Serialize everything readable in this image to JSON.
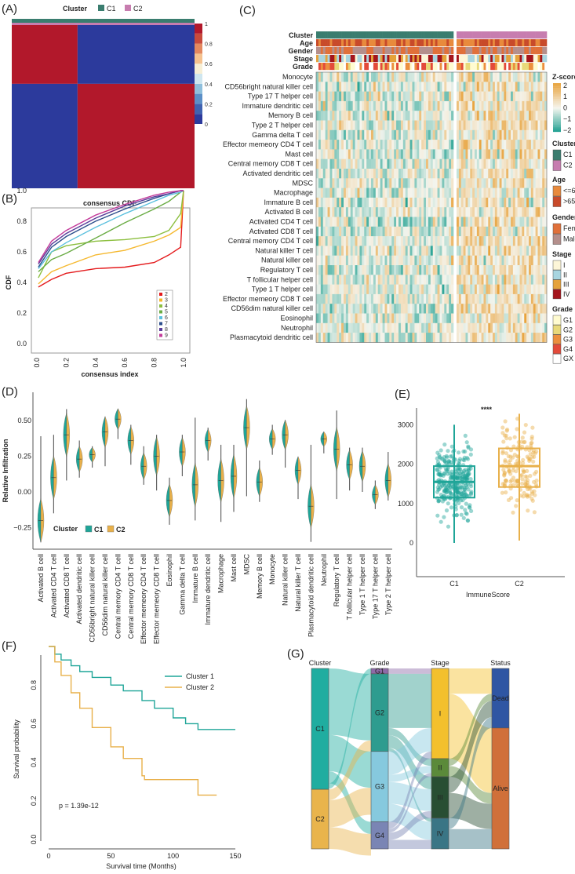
{
  "panel_labels": [
    "(A)",
    "(B)",
    "(C)",
    "(D)",
    "(E)",
    "(F)",
    "(G)"
  ],
  "chart_data": [
    {
      "panel": "A",
      "type": "heatmap",
      "legend": {
        "title": "Cluster",
        "items": [
          {
            "label": "C1",
            "color": "#3a7d6f"
          },
          {
            "label": "C2",
            "color": "#c77daf"
          }
        ]
      },
      "colorbar_ticks": [
        "0",
        "0.2",
        "0.4",
        "0.6",
        "0.8",
        "1"
      ],
      "blocks": [
        {
          "cluster": "C1",
          "value": 1
        },
        {
          "cluster": "C2",
          "value": 1
        }
      ],
      "off_diagonal_value": 0,
      "c1_fraction": 0.36,
      "colors": {
        "high": "#b2182b",
        "low": "#2c3a9c"
      }
    },
    {
      "panel": "B",
      "type": "line",
      "title": "consensus CDF",
      "xlabel": "consensus index",
      "ylabel": "CDF",
      "xlim": [
        0,
        1
      ],
      "ylim": [
        0,
        1
      ],
      "xticks": [
        "0.0",
        "0.2",
        "0.4",
        "0.6",
        "0.8",
        "1.0"
      ],
      "yticks": [
        "0.0",
        "0.2",
        "0.4",
        "0.6",
        "0.8",
        "1.0"
      ],
      "legend_position": "bottom-right",
      "x": [
        0.01,
        0.1,
        0.2,
        0.4,
        0.6,
        0.8,
        0.9,
        0.98,
        1.0
      ],
      "series": [
        {
          "name": "2",
          "color": "#e41a1c",
          "values": [
            0.37,
            0.42,
            0.46,
            0.49,
            0.5,
            0.53,
            0.58,
            0.63,
            1.0
          ]
        },
        {
          "name": "3",
          "color": "#f5b82e",
          "values": [
            0.39,
            0.47,
            0.51,
            0.58,
            0.61,
            0.67,
            0.71,
            0.76,
            1.0
          ]
        },
        {
          "name": "4",
          "color": "#8cbf3f",
          "values": [
            0.43,
            0.6,
            0.64,
            0.67,
            0.68,
            0.7,
            0.74,
            0.85,
            1.0
          ]
        },
        {
          "name": "5",
          "color": "#6aac44",
          "values": [
            0.47,
            0.55,
            0.59,
            0.69,
            0.79,
            0.88,
            0.93,
            0.99,
            1.0
          ]
        },
        {
          "name": "6",
          "color": "#5bc0de",
          "values": [
            0.49,
            0.6,
            0.66,
            0.76,
            0.85,
            0.93,
            0.97,
            0.99,
            1.0
          ]
        },
        {
          "name": "7",
          "color": "#2c4e8c",
          "values": [
            0.5,
            0.63,
            0.7,
            0.8,
            0.88,
            0.95,
            0.98,
            1.0,
            1.0
          ]
        },
        {
          "name": "8",
          "color": "#5a3d9a",
          "values": [
            0.52,
            0.65,
            0.72,
            0.82,
            0.9,
            0.96,
            0.98,
            1.0,
            1.0
          ]
        },
        {
          "name": "9",
          "color": "#c33b9a",
          "values": [
            0.53,
            0.67,
            0.74,
            0.84,
            0.91,
            0.97,
            0.99,
            1.0,
            1.0
          ]
        }
      ]
    },
    {
      "panel": "C",
      "type": "heatmap",
      "annotation_tracks": [
        "Cluster",
        "Age",
        "Gender",
        "Stage",
        "Grade"
      ],
      "rows": [
        "Monocyte",
        "CD56bright natural killer cell",
        "Type 17 T helper cell",
        "Immature dendritic cell",
        "Memory B cell",
        "Type 2 T helper cell",
        "Gamma delta T cell",
        "Effector memeory CD4 T cell",
        "Mast cell",
        "Central memory CD8 T cell",
        "Activated dendritic cell",
        "MDSC",
        "Macrophage",
        "Immature  B cell",
        "Activated B cell",
        "Activated CD4 T cell",
        "Activated CD8 T cell",
        "Central memory CD4 T cell",
        "Natural killer T cell",
        "Natural killer cell",
        "Regulatory T cell",
        "T follicular helper cell",
        "Type 1 T helper cell",
        "Effector memeory CD8 T cell",
        "CD56dim natural killer cell",
        "Eosinophil",
        "Neutrophil",
        "Plasmacytoid dendritic cell"
      ],
      "zscore": {
        "title": "Z-score",
        "ticks": [
          "2",
          "1",
          "0",
          "−1",
          "−2"
        ],
        "colors": {
          "low": "#1a9e8f",
          "mid": "#f5f5ee",
          "high": "#e8a33d"
        }
      },
      "legends": [
        {
          "title": "Cluster",
          "items": [
            {
              "label": "C1",
              "color": "#3a7d6f"
            },
            {
              "label": "C2",
              "color": "#c77daf"
            }
          ]
        },
        {
          "title": "Age",
          "items": [
            {
              "label": "<=65",
              "color": "#e88a3c"
            },
            {
              "label": ">65",
              "color": "#c84a2a"
            }
          ]
        },
        {
          "title": "Gender",
          "items": [
            {
              "label": "Female",
              "color": "#e0703a"
            },
            {
              "label": "Male",
              "color": "#b48f8c"
            }
          ]
        },
        {
          "title": "Stage",
          "items": [
            {
              "label": "I",
              "color": "#fdf6d8"
            },
            {
              "label": "II",
              "color": "#a8d5e0"
            },
            {
              "label": "III",
              "color": "#e5a23b"
            },
            {
              "label": "IV",
              "color": "#a4141c"
            }
          ]
        },
        {
          "title": "Grade",
          "items": [
            {
              "label": "G1",
              "color": "#fffbd0"
            },
            {
              "label": "G2",
              "color": "#e8d97a"
            },
            {
              "label": "G3",
              "color": "#ec8f3e"
            },
            {
              "label": "G4",
              "color": "#e34a3a"
            },
            {
              "label": "GX",
              "color": "#ffffff"
            }
          ]
        }
      ]
    },
    {
      "panel": "D",
      "type": "violin",
      "ylabel": "Relative Infiltration",
      "yticks": [
        -0.25,
        0.0,
        0.25,
        0.5
      ],
      "ytick_labels": [
        "−0.25",
        "0.00",
        "0.25",
        "0.50"
      ],
      "legend": {
        "title": "Cluster",
        "items": [
          {
            "label": "C1",
            "color": "#1fa598"
          },
          {
            "label": "C2",
            "color": "#e8b04a"
          }
        ]
      },
      "categories": [
        "Activated B cell",
        "Activated CD4 T cell",
        "Activated CD8 T cell",
        "Activated dendritic cell",
        "CD56bright natural killer cell",
        "CD56dim natural killer cell",
        "Central memory CD4 T cell",
        "Central memory CD8 T cell",
        "Effector memeory CD4 T cell",
        "Effector memeory CD8 T cell",
        "Eosinophil",
        "Gamma delta T cell",
        "Immature  B cell",
        "Immature dendritic cell",
        "Macrophage",
        "Mast cell",
        "MDSC",
        "Memory B cell",
        "Monocyte",
        "Natural killer cell",
        "Natural killer T cell",
        "Plasmacytoid dendritic cell",
        "Neutrophil",
        "Regulatory T cell",
        "T follicular helper cell",
        "Type 1 T helper cell",
        "Type 17 T helper cell",
        "Type 2 T helper cell"
      ],
      "median": [
        -0.2,
        0.1,
        0.4,
        0.23,
        0.26,
        0.42,
        0.51,
        0.36,
        0.18,
        0.25,
        -0.06,
        0.28,
        0.05,
        0.36,
        0.08,
        0.11,
        0.45,
        0.07,
        0.37,
        0.4,
        0.15,
        -0.1,
        0.37,
        0.3,
        0.19,
        0.18,
        -0.02,
        0.08
      ],
      "min": [
        -0.35,
        -0.15,
        0.08,
        0.1,
        0.17,
        0.18,
        0.37,
        0.19,
        0.05,
        0.01,
        -0.23,
        0.11,
        -0.2,
        0.22,
        -0.21,
        -0.14,
        -0.03,
        -0.07,
        0.26,
        0.17,
        -0.05,
        -0.35,
        0.27,
        -0.05,
        0.01,
        0.0,
        -0.12,
        -0.06
      ],
      "max": [
        0.39,
        0.4,
        0.58,
        0.36,
        0.32,
        0.49,
        0.58,
        0.47,
        0.32,
        0.4,
        0.1,
        0.4,
        0.52,
        0.45,
        0.33,
        0.33,
        0.65,
        0.22,
        0.47,
        0.47,
        0.23,
        0.33,
        0.42,
        0.57,
        0.31,
        0.31,
        0.08,
        0.28
      ]
    },
    {
      "panel": "E",
      "type": "box",
      "xlabel": "ImmuneScore",
      "categories": [
        "C1",
        "C2"
      ],
      "yticks": [
        "0",
        "1000",
        "2000",
        "3000"
      ],
      "ylim": [
        -700,
        3450
      ],
      "significance": "****",
      "series": [
        {
          "name": "C1",
          "color": "#1fa598",
          "q1": 1150,
          "median": 1550,
          "q3": 1950,
          "whisker_low": 0,
          "whisker_high": 3000
        },
        {
          "name": "C2",
          "color": "#e8b04a",
          "q1": 1420,
          "median": 1950,
          "q3": 2400,
          "whisker_low": 60,
          "whisker_high": 3280
        }
      ]
    },
    {
      "panel": "F",
      "type": "line",
      "xlabel": "Survival time (Months)",
      "ylabel": "Survival probability",
      "xticks": [
        "0",
        "50",
        "100",
        "150"
      ],
      "yticks": [
        "0.0",
        "0.2",
        "0.4",
        "0.6",
        "0.8"
      ],
      "xlim": [
        0,
        150
      ],
      "ylim": [
        0,
        1
      ],
      "legend_position": "top-right",
      "annotation": "p = 1.39e-12",
      "series": [
        {
          "name": "Cluster 1",
          "color": "#1fa598",
          "x": [
            0,
            5,
            10,
            18,
            25,
            35,
            50,
            60,
            75,
            85,
            100,
            110,
            120,
            150
          ],
          "y": [
            1,
            0.96,
            0.93,
            0.9,
            0.87,
            0.84,
            0.8,
            0.77,
            0.72,
            0.68,
            0.63,
            0.6,
            0.57,
            0.57
          ]
        },
        {
          "name": "Cluster 2",
          "color": "#e8b04a",
          "x": [
            0,
            5,
            10,
            18,
            25,
            35,
            50,
            60,
            75,
            77,
            100,
            120,
            135
          ],
          "y": [
            1,
            0.92,
            0.85,
            0.76,
            0.68,
            0.58,
            0.48,
            0.42,
            0.33,
            0.31,
            0.31,
            0.23,
            0.23
          ]
        }
      ]
    },
    {
      "panel": "G",
      "type": "sankey",
      "axes": [
        "Cluster",
        "Grade",
        "Stage",
        "Status"
      ],
      "nodes": [
        [
          {
            "label": "C1",
            "share": 0.67,
            "color": "#20ada0"
          },
          {
            "label": "C2",
            "share": 0.33,
            "color": "#e9b44c"
          }
        ],
        [
          {
            "label": "G1",
            "share": 0.03,
            "color": "#8e6aa8"
          },
          {
            "label": "G2",
            "share": 0.43,
            "color": "#2e9c8f"
          },
          {
            "label": "G3",
            "share": 0.39,
            "color": "#86c9de"
          },
          {
            "label": "G4",
            "share": 0.15,
            "color": "#7a85b4"
          }
        ],
        [
          {
            "label": "I",
            "share": 0.5,
            "color": "#f3c02d"
          },
          {
            "label": "II",
            "share": 0.1,
            "color": "#5b8a3a"
          },
          {
            "label": "III",
            "share": 0.23,
            "color": "#284e33"
          },
          {
            "label": "IV",
            "share": 0.17,
            "color": "#3a7585"
          }
        ],
        [
          {
            "label": "Dead",
            "share": 0.33,
            "color": "#2f56a3"
          },
          {
            "label": "Alive",
            "share": 0.67,
            "color": "#d0703a"
          }
        ]
      ]
    }
  ]
}
